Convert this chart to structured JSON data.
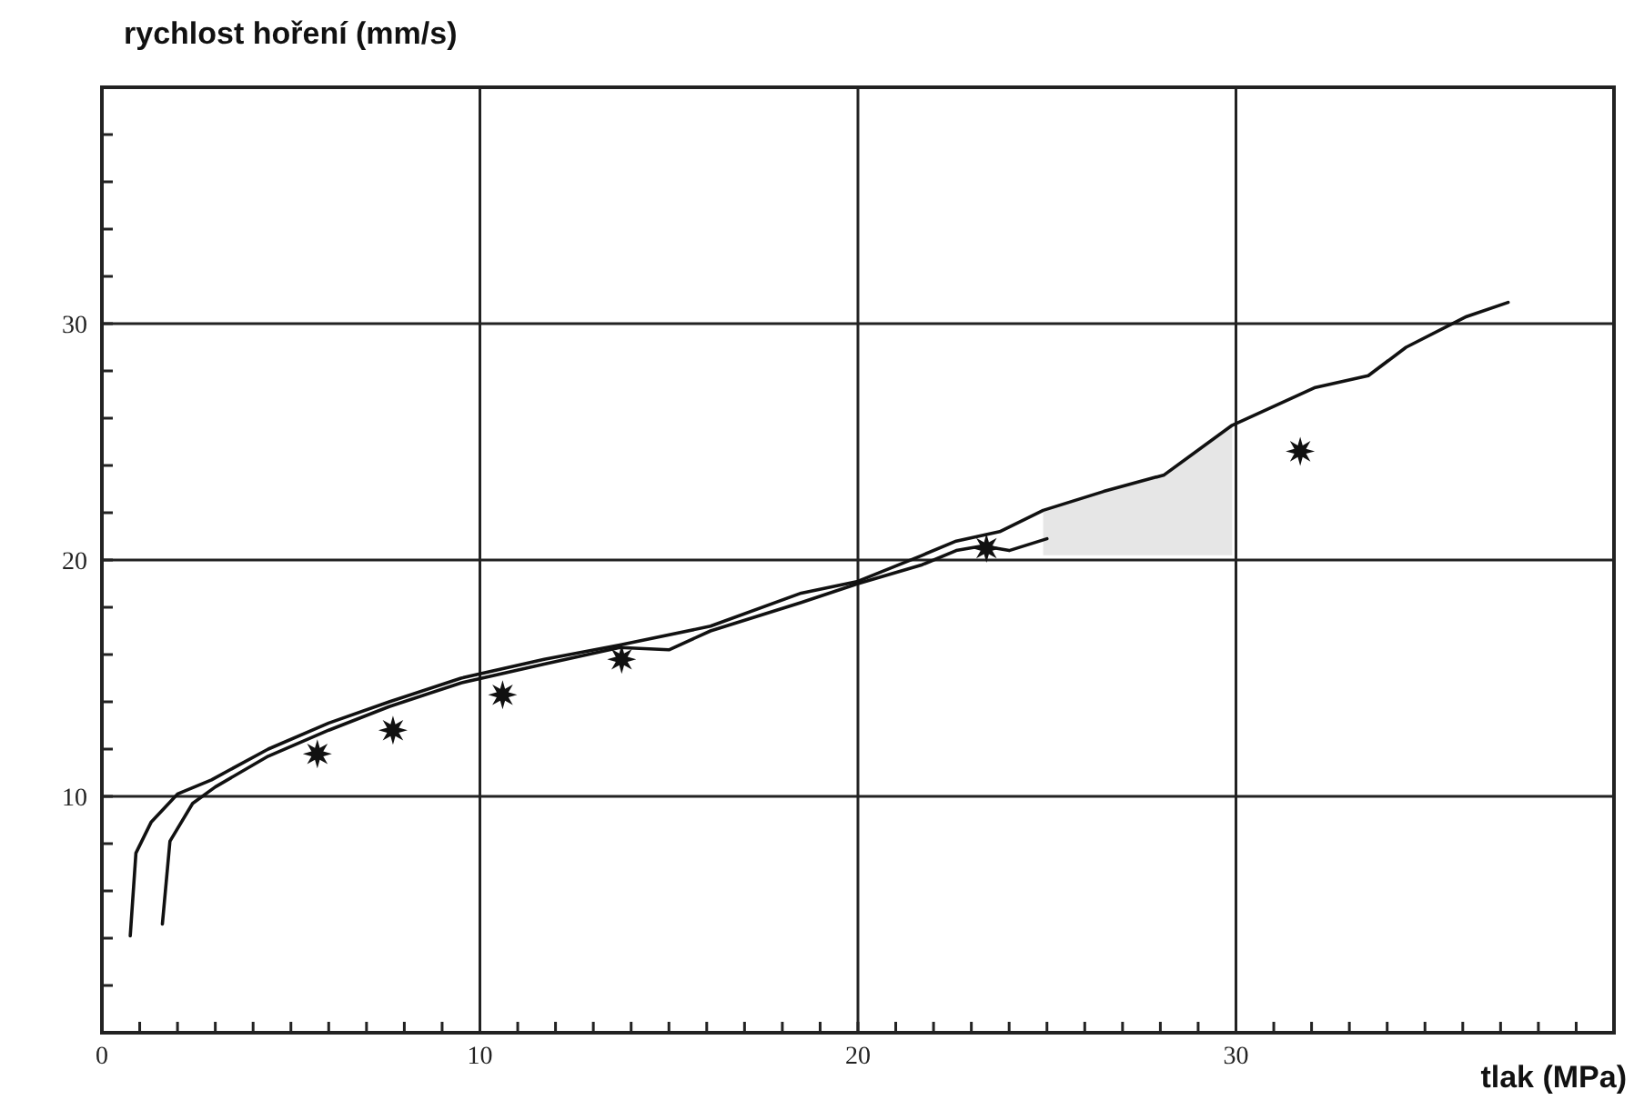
{
  "chart_data": {
    "type": "line",
    "xlabel": "tlak (MPa)",
    "ylabel": "rychlost hoření (mm/s)",
    "xlim": [
      0,
      40
    ],
    "ylim": [
      0,
      40
    ],
    "xticks": [
      0,
      {
        "value": 1,
        "label": null
      },
      {
        "value": 2,
        "label": null
      },
      {
        "value": 3,
        "label": null
      },
      {
        "value": 4,
        "label": null
      },
      {
        "value": 5,
        "label": null
      },
      {
        "value": 6,
        "label": null
      },
      {
        "value": 7,
        "label": null
      },
      {
        "value": 8,
        "label": null
      },
      {
        "value": 9,
        "label": null
      },
      10,
      {
        "value": 11,
        "label": null
      },
      {
        "value": 12,
        "label": null
      },
      {
        "value": 13,
        "label": null
      },
      {
        "value": 14,
        "label": null
      },
      {
        "value": 15,
        "label": null
      },
      {
        "value": 16,
        "label": null
      },
      {
        "value": 17,
        "label": null
      },
      {
        "value": 18,
        "label": null
      },
      {
        "value": 19,
        "label": null
      },
      20,
      {
        "value": 21,
        "label": null
      },
      {
        "value": 22,
        "label": null
      },
      {
        "value": 23,
        "label": null
      },
      {
        "value": 24,
        "label": null
      },
      {
        "value": 25,
        "label": null
      },
      {
        "value": 26,
        "label": null
      },
      {
        "value": 27,
        "label": null
      },
      {
        "value": 28,
        "label": null
      },
      {
        "value": 29,
        "label": null
      },
      30,
      {
        "value": 31,
        "label": null
      },
      {
        "value": 32,
        "label": null
      },
      {
        "value": 33,
        "label": null
      },
      {
        "value": 34,
        "label": null
      },
      {
        "value": 35,
        "label": null
      },
      {
        "value": 36,
        "label": null
      },
      {
        "value": 37,
        "label": null
      },
      {
        "value": 38,
        "label": null
      },
      {
        "value": 39,
        "label": null
      }
    ],
    "yticks": [
      {
        "value": 2,
        "label": null
      },
      {
        "value": 4,
        "label": null
      },
      {
        "value": 6,
        "label": null
      },
      {
        "value": 8,
        "label": null
      },
      10,
      {
        "value": 12,
        "label": null
      },
      {
        "value": 14,
        "label": null
      },
      {
        "value": 16,
        "label": null
      },
      {
        "value": 18,
        "label": null
      },
      20,
      {
        "value": 22,
        "label": null
      },
      {
        "value": 24,
        "label": null
      },
      {
        "value": 26,
        "label": null
      },
      {
        "value": 28,
        "label": null
      },
      30,
      {
        "value": 32,
        "label": null
      },
      {
        "value": 34,
        "label": null
      },
      {
        "value": 36,
        "label": null
      },
      {
        "value": 38,
        "label": null
      }
    ],
    "grid": true,
    "series": [
      {
        "color": "#111111",
        "x": [
          0.75,
          0.9,
          1.3,
          2.0,
          2.9,
          4.4,
          6.0,
          7.6,
          9.5,
          11.7,
          13.7,
          16.1,
          18.5,
          20.0,
          21.7,
          22.6,
          23.75,
          24.9,
          26.5,
          28.1,
          29.9,
          32.1,
          33.5,
          34.5,
          36.1,
          37.2
        ],
        "values": [
          4.1,
          7.6,
          8.9,
          10.1,
          10.7,
          12.0,
          13.1,
          14.0,
          15.0,
          15.8,
          16.4,
          17.2,
          18.6,
          19.1,
          20.2,
          20.8,
          21.2,
          22.1,
          22.9,
          23.6,
          25.7,
          27.3,
          27.8,
          29.0,
          30.3,
          30.9
        ],
        "lower": [
          null,
          null,
          null,
          null,
          null,
          null,
          null,
          null,
          null,
          null,
          null,
          null,
          null,
          null,
          null,
          null,
          null,
          20.2,
          20.2,
          20.2,
          20.2,
          null,
          null,
          null,
          null,
          null
        ],
        "upper": [
          null,
          null,
          null,
          null,
          null,
          null,
          null,
          null,
          null,
          null,
          null,
          null,
          null,
          null,
          null,
          null,
          null,
          22.1,
          22.9,
          23.6,
          25.7,
          null,
          null,
          null,
          null,
          null
        ]
      },
      {
        "color": "#111111",
        "x": [
          1.6,
          1.8,
          2.4,
          3.0,
          4.4,
          6.0,
          7.6,
          9.5,
          11.7,
          13.7,
          15.0,
          16.1,
          18.5,
          20.0,
          21.7,
          22.6,
          23.3,
          24.0,
          25.0
        ],
        "values": [
          4.6,
          8.1,
          9.7,
          10.4,
          11.7,
          12.8,
          13.8,
          14.8,
          15.6,
          16.3,
          16.2,
          17.0,
          18.2,
          19.0,
          19.8,
          20.4,
          20.6,
          20.4,
          20.9
        ]
      },
      {
        "type": "scatter",
        "color": "#111111",
        "marker": "star",
        "x": [
          5.7,
          7.7,
          10.6,
          13.75,
          23.4,
          31.7
        ],
        "values": [
          11.8,
          12.8,
          14.3,
          15.8,
          20.5,
          24.6
        ]
      }
    ]
  }
}
